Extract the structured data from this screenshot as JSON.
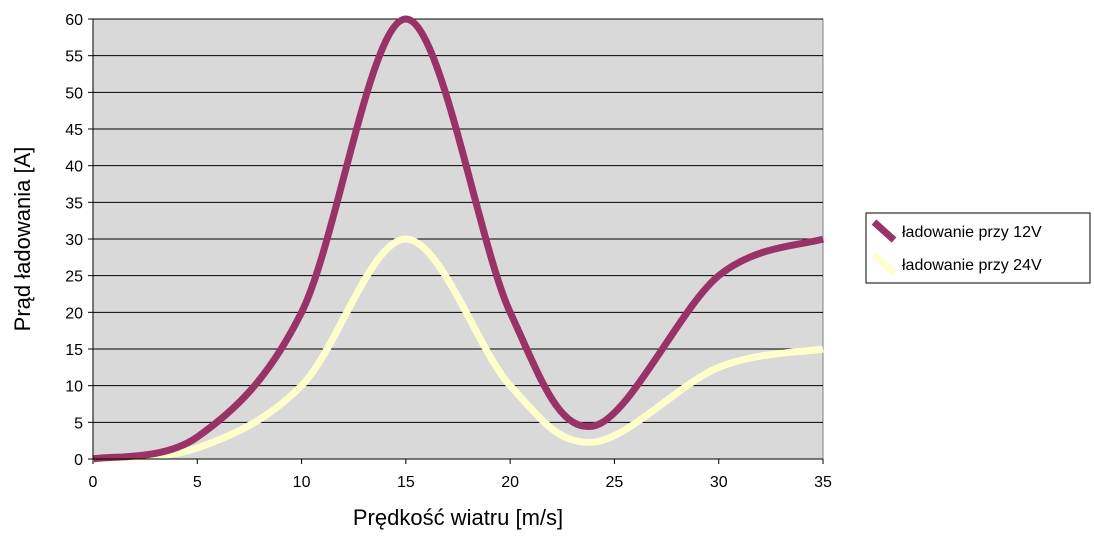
{
  "chart_data": {
    "type": "line",
    "title": "",
    "xlabel": "Prędkość wiatru [m/s]",
    "ylabel": "Prąd ładowania [A]",
    "xlim": [
      0,
      35
    ],
    "ylim": [
      0,
      60
    ],
    "xticks": [
      0,
      5,
      10,
      15,
      20,
      25,
      30,
      35
    ],
    "yticks": [
      0,
      5,
      10,
      15,
      20,
      25,
      30,
      35,
      40,
      45,
      50,
      55,
      60
    ],
    "grid": "horizontal",
    "plot_background": "#d9d9d9",
    "legend_position": "right",
    "series": [
      {
        "name": "ładowanie przy 12V",
        "color": "#993366",
        "x": [
          0,
          5,
          10,
          15,
          20,
          24,
          30,
          35
        ],
        "y": [
          0,
          3,
          20,
          60,
          20,
          4.5,
          25,
          30
        ]
      },
      {
        "name": "ładowanie przy 24V",
        "color": "#ffffcc",
        "x": [
          0,
          5,
          10,
          15,
          20,
          24,
          30,
          35
        ],
        "y": [
          0,
          1.5,
          10,
          30,
          10,
          2.3,
          12.5,
          15
        ]
      }
    ]
  }
}
